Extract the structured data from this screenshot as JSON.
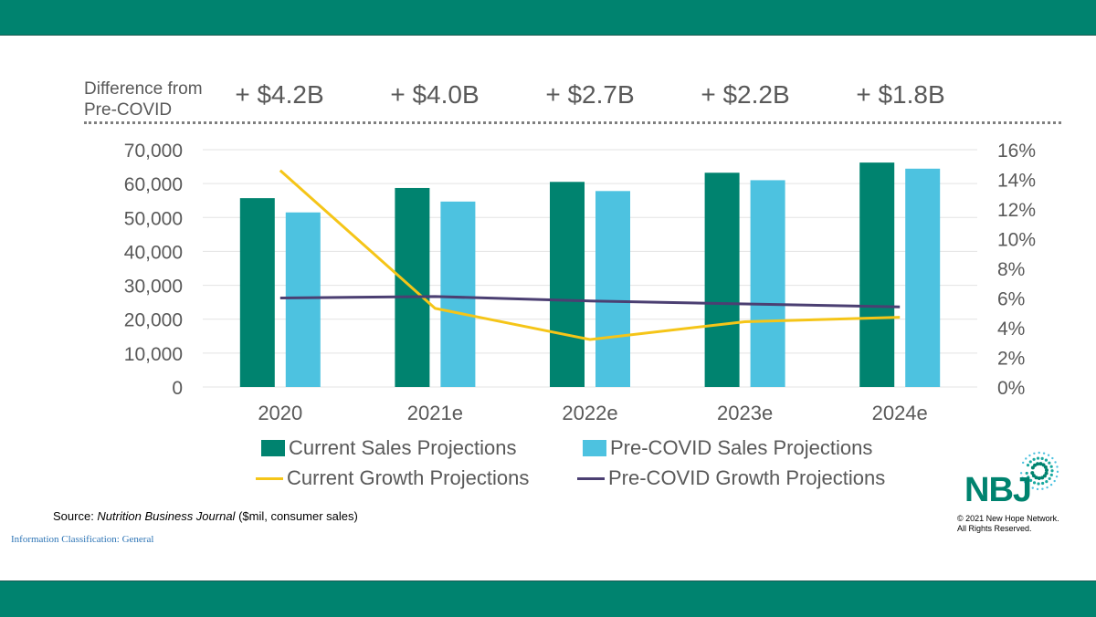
{
  "header": {
    "diff_label": "Difference from Pre-COVID",
    "differences": [
      "+ $4.2B",
      "+ $4.0B",
      "+ $2.7B",
      "+ $2.2B",
      "+ $1.8B"
    ]
  },
  "chart_data": {
    "type": "bar",
    "categories": [
      "2020",
      "2021e",
      "2022e",
      "2023e",
      "2024e"
    ],
    "y_left": {
      "range": [
        0,
        70000
      ],
      "ticks": [
        "0",
        "10,000",
        "20,000",
        "30,000",
        "40,000",
        "50,000",
        "60,000",
        "70,000"
      ]
    },
    "y_right": {
      "range": [
        0,
        16
      ],
      "ticks": [
        "0%",
        "2%",
        "4%",
        "6%",
        "8%",
        "10%",
        "12%",
        "14%",
        "16%"
      ]
    },
    "bar_series": [
      {
        "name": "Current Sales Projections",
        "color": "#00836f",
        "values": [
          55700,
          58700,
          60500,
          63200,
          66200
        ]
      },
      {
        "name": "Pre-COVID Sales Projections",
        "color": "#4dc2e0",
        "values": [
          51500,
          54700,
          57800,
          61000,
          64400
        ]
      }
    ],
    "line_series": [
      {
        "name": "Current Growth Projections",
        "color": "#f5c518",
        "axis": "right",
        "values": [
          14.6,
          5.3,
          3.2,
          4.4,
          4.7
        ]
      },
      {
        "name": "Pre-COVID Growth Projections",
        "color": "#4b3f72",
        "axis": "right",
        "values": [
          6.0,
          6.1,
          5.8,
          5.6,
          5.4
        ]
      }
    ],
    "grid": true,
    "legend_position": "bottom"
  },
  "footer": {
    "source_prefix": "Source: ",
    "source_journal": "Nutrition Business Journal",
    "source_suffix": " ($mil, consumer sales)",
    "classification": "Information Classification: General",
    "logo_text": "NBJ",
    "copyright_line1": "© 2021 New Hope Network.",
    "copyright_line2": "All Rights Reserved."
  },
  "colors": {
    "band": "#00836f",
    "text_gray": "#595959"
  }
}
